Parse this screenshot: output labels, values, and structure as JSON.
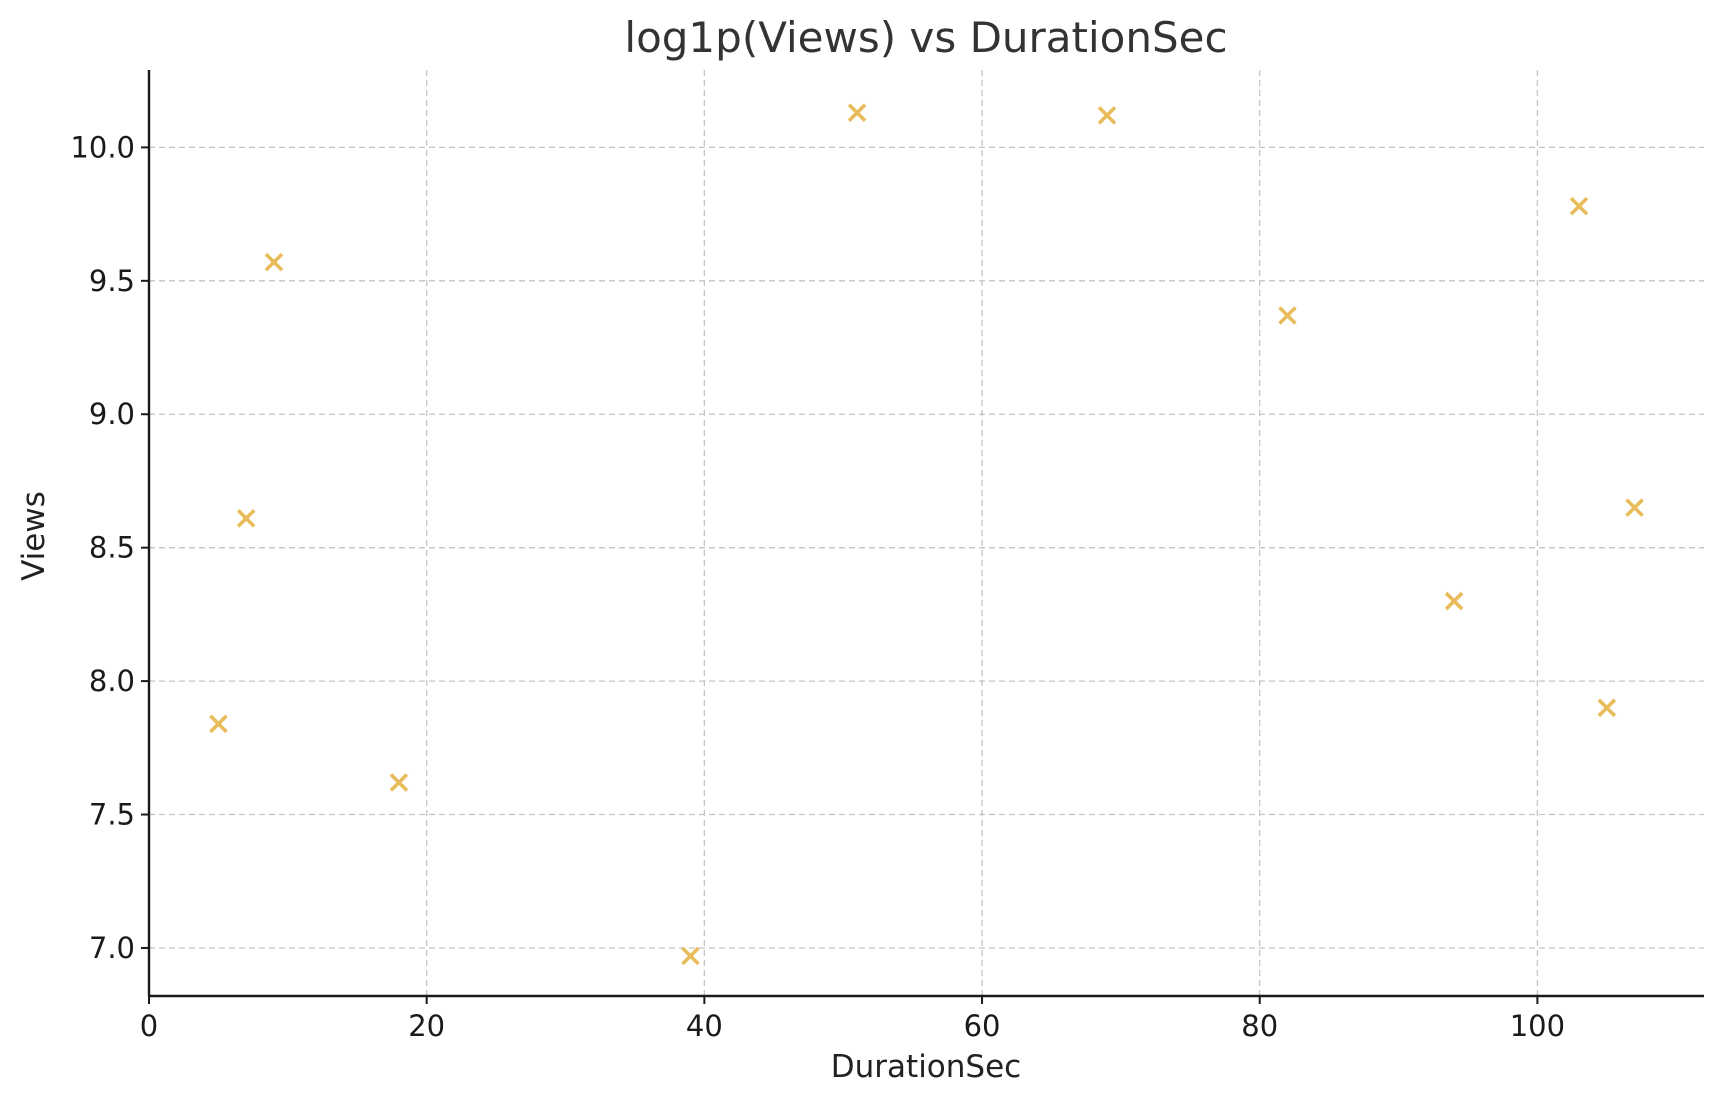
{
  "chart_data": {
    "type": "scatter",
    "title": "log1p(Views) vs DurationSec",
    "xlabel": "DurationSec",
    "ylabel": "Views",
    "xlim": [
      0,
      112
    ],
    "ylim": [
      6.82,
      10.29
    ],
    "xticks": [
      0,
      20,
      40,
      60,
      80,
      100
    ],
    "xtick_labels": [
      "0",
      "20",
      "40",
      "60",
      "80",
      "100"
    ],
    "yticks": [
      7.0,
      7.5,
      8.0,
      8.5,
      9.0,
      9.5,
      10.0
    ],
    "ytick_labels": [
      "7.0",
      "7.5",
      "8.0",
      "8.5",
      "9.0",
      "9.5",
      "10.0"
    ],
    "grid": true,
    "marker": "x",
    "color": "#E8BC5A",
    "series": [
      {
        "x": [
          5,
          7,
          9,
          18,
          39,
          51,
          69,
          82,
          94,
          103,
          105,
          107
        ],
        "y": [
          7.84,
          8.61,
          9.57,
          7.62,
          6.97,
          10.13,
          10.12,
          9.37,
          8.3,
          9.78,
          7.9,
          8.65
        ]
      }
    ]
  }
}
